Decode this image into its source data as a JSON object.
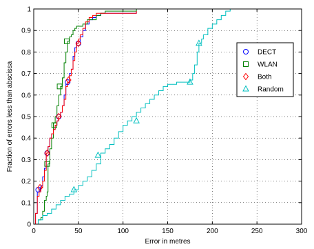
{
  "chart_data": {
    "type": "line",
    "title": "",
    "xlabel": "Error in metres",
    "ylabel": "Fraction of errors less than abscissa",
    "xlim": [
      0,
      300
    ],
    "ylim": [
      0,
      1
    ],
    "xticks": [
      0,
      50,
      100,
      150,
      200,
      250,
      300
    ],
    "yticks": [
      0,
      0.1,
      0.2,
      0.3,
      0.4,
      0.5,
      0.6,
      0.7,
      0.8,
      0.9,
      1
    ],
    "xtick_labels": [
      "0",
      "50",
      "100",
      "150",
      "200",
      "250",
      "300"
    ],
    "ytick_labels": [
      "0",
      "0.1",
      "0.2",
      "0.3",
      "0.4",
      "0.5",
      "0.6",
      "0.7",
      "0.8",
      "0.9",
      "1"
    ],
    "grid": true,
    "legend_position": "right",
    "series": [
      {
        "name": "DECT",
        "color": "#0000ff",
        "marker": "circle",
        "x": [
          0,
          2,
          4,
          6,
          7,
          8,
          10,
          12,
          14,
          16,
          18,
          20,
          22,
          24,
          26,
          28,
          30,
          32,
          34,
          36,
          38,
          40,
          42,
          44,
          46,
          48,
          50,
          52,
          55,
          58,
          62,
          66,
          70,
          75,
          80,
          90,
          100,
          115
        ],
        "y": [
          0,
          0.05,
          0.15,
          0.16,
          0.17,
          0.18,
          0.22,
          0.26,
          0.33,
          0.36,
          0.4,
          0.42,
          0.44,
          0.46,
          0.48,
          0.5,
          0.52,
          0.55,
          0.6,
          0.65,
          0.66,
          0.7,
          0.72,
          0.78,
          0.82,
          0.84,
          0.85,
          0.87,
          0.9,
          0.93,
          0.95,
          0.96,
          0.97,
          0.98,
          0.98,
          0.98,
          0.98,
          0.99
        ],
        "marker_x": [
          5,
          15,
          28,
          38,
          50
        ],
        "marker_y": [
          0.16,
          0.33,
          0.5,
          0.66,
          0.84
        ]
      },
      {
        "name": "WLAN",
        "color": "#008000",
        "marker": "square",
        "x": [
          0,
          5,
          8,
          10,
          12,
          14,
          15,
          16,
          18,
          20,
          22,
          24,
          26,
          28,
          30,
          32,
          34,
          36,
          38,
          40,
          42,
          44,
          46,
          48,
          50,
          55,
          60,
          65,
          70,
          75,
          80,
          90,
          100,
          115
        ],
        "y": [
          0,
          0.02,
          0.03,
          0.06,
          0.11,
          0.13,
          0.15,
          0.28,
          0.35,
          0.4,
          0.47,
          0.5,
          0.55,
          0.6,
          0.64,
          0.68,
          0.75,
          0.8,
          0.85,
          0.87,
          0.88,
          0.9,
          0.91,
          0.92,
          0.92,
          0.93,
          0.95,
          0.95,
          0.97,
          0.98,
          0.99,
          0.99,
          0.99,
          1.0
        ],
        "marker_x": [
          15,
          23,
          29,
          37
        ],
        "marker_y": [
          0.28,
          0.46,
          0.64,
          0.85
        ]
      },
      {
        "name": "Both",
        "color": "#ff0000",
        "marker": "diamond",
        "x": [
          0,
          2,
          4,
          6,
          8,
          10,
          12,
          14,
          16,
          18,
          20,
          22,
          24,
          26,
          28,
          30,
          32,
          34,
          36,
          38,
          40,
          42,
          44,
          46,
          48,
          50,
          52,
          55,
          58,
          62,
          66,
          70,
          75,
          80,
          90,
          100,
          115
        ],
        "y": [
          0,
          0.05,
          0.13,
          0.15,
          0.17,
          0.2,
          0.25,
          0.33,
          0.36,
          0.4,
          0.42,
          0.44,
          0.46,
          0.48,
          0.5,
          0.52,
          0.55,
          0.58,
          0.64,
          0.66,
          0.69,
          0.72,
          0.76,
          0.8,
          0.84,
          0.86,
          0.88,
          0.91,
          0.94,
          0.96,
          0.97,
          0.98,
          0.98,
          0.98,
          0.98,
          0.98,
          0.99
        ],
        "marker_x": [
          7,
          15,
          28,
          39,
          50
        ],
        "marker_y": [
          0.17,
          0.33,
          0.5,
          0.67,
          0.84
        ]
      },
      {
        "name": "Random",
        "color": "#00bfbf",
        "marker": "triangle",
        "x": [
          0,
          5,
          10,
          15,
          20,
          25,
          30,
          35,
          40,
          45,
          50,
          55,
          60,
          65,
          70,
          75,
          80,
          85,
          90,
          95,
          100,
          105,
          110,
          115,
          120,
          125,
          130,
          135,
          140,
          145,
          150,
          155,
          160,
          165,
          170,
          175,
          178,
          180,
          183,
          185,
          188,
          190,
          195,
          200,
          205,
          210,
          215,
          220
        ],
        "y": [
          0,
          0.02,
          0.04,
          0.05,
          0.07,
          0.09,
          0.11,
          0.13,
          0.14,
          0.16,
          0.18,
          0.2,
          0.22,
          0.25,
          0.28,
          0.33,
          0.35,
          0.37,
          0.4,
          0.43,
          0.46,
          0.48,
          0.5,
          0.52,
          0.54,
          0.56,
          0.58,
          0.6,
          0.62,
          0.64,
          0.65,
          0.65,
          0.66,
          0.66,
          0.66,
          0.67,
          0.7,
          0.74,
          0.8,
          0.84,
          0.86,
          0.88,
          0.91,
          0.93,
          0.95,
          0.97,
          0.99,
          1.0
        ],
        "marker_x": [
          45,
          72,
          115,
          175,
          185
        ],
        "marker_y": [
          0.16,
          0.32,
          0.48,
          0.66,
          0.84
        ]
      }
    ]
  }
}
